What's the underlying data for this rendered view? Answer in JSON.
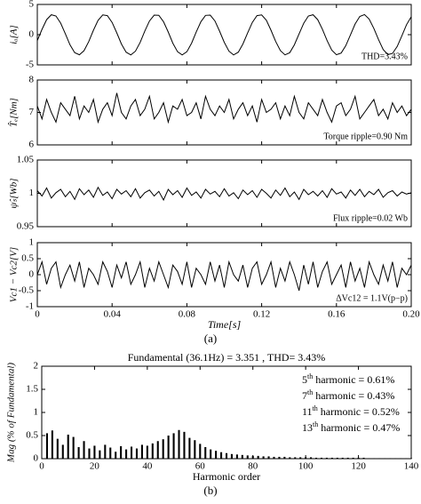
{
  "chart_data": [
    {
      "type": "line",
      "ylabel": "iₐ[A]",
      "annotation": "THD=3.43%",
      "xlim": [
        0,
        0.2
      ],
      "ylim": [
        -5,
        5
      ],
      "yticks": [
        -5,
        0,
        5
      ],
      "color": "#000000",
      "x": [
        0,
        0.0025,
        0.005,
        0.0075,
        0.01,
        0.0125,
        0.015,
        0.0175,
        0.02,
        0.0225,
        0.025,
        0.0275,
        0.03,
        0.0325,
        0.035,
        0.0375,
        0.04,
        0.0425,
        0.045,
        0.0475,
        0.05,
        0.0525,
        0.055,
        0.0575,
        0.06,
        0.0625,
        0.065,
        0.0675,
        0.07,
        0.0725,
        0.075,
        0.0775,
        0.08,
        0.0825,
        0.085,
        0.0875,
        0.09,
        0.0925,
        0.095,
        0.0975,
        0.1,
        0.1025,
        0.105,
        0.1075,
        0.11,
        0.1125,
        0.115,
        0.1175,
        0.12,
        0.1225,
        0.125,
        0.1275,
        0.13,
        0.1325,
        0.135,
        0.1375,
        0.14,
        0.1425,
        0.145,
        0.1475,
        0.15,
        0.1525,
        0.155,
        0.1575,
        0.16,
        0.1625,
        0.165,
        0.1675,
        0.17,
        0.1725,
        0.175,
        0.1775,
        0.18,
        0.1825,
        0.185,
        0.1875,
        0.19,
        0.1925,
        0.195,
        0.1975,
        0.2
      ],
      "values": [
        -0.99,
        0.88,
        2.48,
        3.3,
        3.09,
        1.91,
        0.13,
        -1.68,
        -2.97,
        -3.33,
        -2.65,
        -1.14,
        0.73,
        2.37,
        3.27,
        3.15,
        2.03,
        0.29,
        -1.55,
        -2.9,
        -3.35,
        -2.74,
        -1.28,
        0.58,
        2.26,
        3.24,
        3.2,
        2.15,
        0.44,
        -1.41,
        -2.82,
        -3.35,
        -2.82,
        -1.41,
        0.43,
        2.15,
        3.19,
        3.24,
        2.27,
        0.59,
        -1.27,
        -2.74,
        -3.35,
        -2.9,
        -1.55,
        0.28,
        2.03,
        3.14,
        3.27,
        2.38,
        0.74,
        -1.13,
        -2.65,
        -3.34,
        -2.98,
        -1.69,
        0.12,
        1.9,
        3.09,
        3.3,
        2.49,
        0.89,
        -0.98,
        -2.55,
        -3.32,
        -3.05,
        -1.82,
        -0.03,
        1.77,
        3.02,
        3.33,
        2.59,
        1.04,
        -0.83,
        -2.45,
        -3.29,
        -3.11,
        -1.95,
        -0.18,
        1.64,
        2.95
      ]
    },
    {
      "type": "line",
      "ylabel": "T̂ₑ[Nm]",
      "annotation": "Torque ripple=0.90 Nm",
      "xlim": [
        0,
        0.2
      ],
      "ylim": [
        6,
        8
      ],
      "yticks": [
        6,
        7,
        8
      ],
      "color": "#000000",
      "x": [
        0,
        0.0025,
        0.005,
        0.0075,
        0.01,
        0.0125,
        0.015,
        0.0175,
        0.02,
        0.0225,
        0.025,
        0.0275,
        0.03,
        0.0325,
        0.035,
        0.0375,
        0.04,
        0.0425,
        0.045,
        0.0475,
        0.05,
        0.0525,
        0.055,
        0.0575,
        0.06,
        0.0625,
        0.065,
        0.0675,
        0.07,
        0.0725,
        0.075,
        0.0775,
        0.08,
        0.0825,
        0.085,
        0.0875,
        0.09,
        0.0925,
        0.095,
        0.0975,
        0.1,
        0.1025,
        0.105,
        0.1075,
        0.11,
        0.1125,
        0.115,
        0.1175,
        0.12,
        0.1225,
        0.125,
        0.1275,
        0.13,
        0.1325,
        0.135,
        0.1375,
        0.14,
        0.1425,
        0.145,
        0.1475,
        0.15,
        0.1525,
        0.155,
        0.1575,
        0.16,
        0.1625,
        0.165,
        0.1675,
        0.17,
        0.1725,
        0.175,
        0.1775,
        0.18,
        0.1825,
        0.185,
        0.1875,
        0.19,
        0.1925,
        0.195,
        0.1975,
        0.2
      ],
      "values": [
        7.2,
        6.8,
        7.4,
        7.0,
        6.7,
        7.3,
        7.1,
        6.9,
        7.5,
        6.8,
        7.2,
        7.0,
        7.4,
        6.7,
        7.1,
        7.3,
        6.9,
        7.6,
        7.0,
        6.8,
        7.2,
        7.4,
        6.9,
        7.1,
        7.5,
        6.8,
        7.0,
        7.3,
        6.7,
        7.2,
        7.1,
        7.4,
        6.9,
        7.0,
        7.3,
        6.8,
        7.5,
        7.1,
        6.9,
        7.2,
        7.0,
        7.4,
        6.8,
        7.1,
        7.3,
        6.9,
        7.2,
        6.7,
        7.4,
        7.0,
        7.1,
        7.3,
        6.8,
        7.2,
        6.9,
        7.5,
        7.0,
        6.8,
        7.3,
        7.1,
        6.9,
        7.4,
        7.0,
        6.7,
        7.2,
        7.3,
        6.9,
        7.1,
        7.5,
        6.8,
        7.0,
        7.2,
        7.4,
        6.9,
        7.1,
        6.8,
        7.3,
        7.0,
        7.2,
        6.9,
        7.1
      ]
    },
    {
      "type": "line",
      "ylabel": "ψ̂ₛ[Wb]",
      "annotation": "Flux ripple=0.02 Wb",
      "xlim": [
        0,
        0.2
      ],
      "ylim": [
        0.95,
        1.05
      ],
      "yticks": [
        0.95,
        1,
        1.05
      ],
      "color": "#000000",
      "x": [
        0,
        0.0025,
        0.005,
        0.0075,
        0.01,
        0.0125,
        0.015,
        0.0175,
        0.02,
        0.0225,
        0.025,
        0.0275,
        0.03,
        0.0325,
        0.035,
        0.0375,
        0.04,
        0.0425,
        0.045,
        0.0475,
        0.05,
        0.0525,
        0.055,
        0.0575,
        0.06,
        0.0625,
        0.065,
        0.0675,
        0.07,
        0.0725,
        0.075,
        0.0775,
        0.08,
        0.0825,
        0.085,
        0.0875,
        0.09,
        0.0925,
        0.095,
        0.0975,
        0.1,
        0.1025,
        0.105,
        0.1075,
        0.11,
        0.1125,
        0.115,
        0.1175,
        0.12,
        0.1225,
        0.125,
        0.1275,
        0.13,
        0.1325,
        0.135,
        0.1375,
        0.14,
        0.1425,
        0.145,
        0.1475,
        0.15,
        0.1525,
        0.155,
        0.1575,
        0.16,
        0.1625,
        0.165,
        0.1675,
        0.17,
        0.1725,
        0.175,
        0.1775,
        0.18,
        0.1825,
        0.185,
        0.1875,
        0.19,
        0.1925,
        0.195,
        0.1975,
        0.2
      ],
      "values": [
        1.004,
        0.996,
        1.008,
        0.993,
        1.001,
        1.006,
        0.995,
        1.003,
        0.991,
        1.007,
        0.998,
        1.005,
        0.994,
        1.009,
        0.997,
        1.002,
        0.992,
        1.006,
        0.999,
        1.004,
        0.995,
        1.007,
        0.993,
        1.001,
        1.005,
        0.996,
        1.003,
        0.99,
        1.006,
        0.998,
        1.004,
        0.994,
        1.008,
        0.997,
        1.002,
        0.993,
        1.006,
        0.999,
        1.003,
        0.995,
        1.007,
        0.996,
        1.001,
        0.992,
        1.005,
        0.998,
        1.004,
        0.994,
        1.006,
        1.0,
        0.993,
        1.005,
        0.997,
        1.008,
        0.995,
        1.002,
        0.991,
        1.006,
        0.998,
        1.003,
        0.996,
        1.004,
        0.994,
        1.007,
        0.999,
        1.002,
        0.993,
        1.005,
        0.997,
        1.006,
        0.995,
        1.003,
        0.998,
        1.006,
        0.994,
        1.001,
        1.004,
        0.996,
        1.002,
        0.999,
        1.001
      ]
    },
    {
      "type": "line",
      "ylabel": "Vc1 − Vc2[V]",
      "annotation": "ΔVc12 = 1.1V(p−p)",
      "xlabel": "Time[s]",
      "xlim": [
        0,
        0.2
      ],
      "ylim": [
        -1,
        1
      ],
      "yticks": [
        -1,
        -0.5,
        0,
        0.5,
        1
      ],
      "xticks": [
        0,
        0.04,
        0.08,
        0.12,
        0.16,
        {
          "value": 0.2,
          "label": "0.20"
        }
      ],
      "color": "#000000",
      "x": [
        0,
        0.0025,
        0.005,
        0.0075,
        0.01,
        0.0125,
        0.015,
        0.0175,
        0.02,
        0.0225,
        0.025,
        0.0275,
        0.03,
        0.0325,
        0.035,
        0.0375,
        0.04,
        0.0425,
        0.045,
        0.0475,
        0.05,
        0.0525,
        0.055,
        0.0575,
        0.06,
        0.0625,
        0.065,
        0.0675,
        0.07,
        0.0725,
        0.075,
        0.0775,
        0.08,
        0.0825,
        0.085,
        0.0875,
        0.09,
        0.0925,
        0.095,
        0.0975,
        0.1,
        0.1025,
        0.105,
        0.1075,
        0.11,
        0.1125,
        0.115,
        0.1175,
        0.12,
        0.1225,
        0.125,
        0.1275,
        0.13,
        0.1325,
        0.135,
        0.1375,
        0.14,
        0.1425,
        0.145,
        0.1475,
        0.15,
        0.1525,
        0.155,
        0.1575,
        0.16,
        0.1625,
        0.165,
        0.1675,
        0.17,
        0.1725,
        0.175,
        0.1775,
        0.18,
        0.1825,
        0.185,
        0.1875,
        0.19,
        0.1925,
        0.195,
        0.1975,
        0.2
      ],
      "values": [
        0,
        0.4,
        -0.3,
        0.2,
        0.4,
        -0.4,
        0,
        0.3,
        -0.2,
        0.4,
        -0.4,
        0.2,
        0,
        -0.3,
        0.4,
        0.1,
        -0.4,
        0.3,
        -0.1,
        0.4,
        -0.3,
        0,
        0.4,
        -0.4,
        0.2,
        -0.2,
        0.4,
        0,
        -0.4,
        0.3,
        0.1,
        -0.3,
        0.4,
        -0.4,
        0.2,
        0,
        -0.3,
        0.4,
        -0.2,
        0.3,
        -0.4,
        0.4,
        0,
        -0.2,
        0.3,
        -0.4,
        0.2,
        0.4,
        -0.3,
        0,
        0.4,
        -0.4,
        0.2,
        -0.2,
        0.4,
        0,
        -0.5,
        0.3,
        -0.3,
        0.4,
        -0.4,
        0.1,
        0.4,
        -0.3,
        0,
        0.3,
        -0.4,
        0.4,
        -0.2,
        0.2,
        -0.4,
        0.4,
        0,
        -0.3,
        0.3,
        -0.2,
        0.4,
        -0.4,
        0.2,
        0,
        0.3
      ]
    },
    {
      "type": "bar",
      "title": "Fundamental (36.1Hz) = 3.351 , THD= 3.43%",
      "xlabel": "Harmonic order",
      "ylabel": "Mag (% of Fundamental)",
      "xlim": [
        0,
        140
      ],
      "ylim": [
        0,
        2
      ],
      "xticks": [
        0,
        20,
        40,
        60,
        80,
        100,
        120,
        140
      ],
      "yticks": [
        0,
        0.5,
        1,
        1.5,
        2
      ],
      "color": "#000000",
      "x": [
        2,
        4,
        6,
        8,
        10,
        12,
        14,
        16,
        18,
        20,
        22,
        24,
        26,
        28,
        30,
        32,
        34,
        36,
        38,
        40,
        42,
        44,
        46,
        48,
        50,
        52,
        54,
        56,
        58,
        60,
        62,
        64,
        66,
        68,
        70,
        72,
        74,
        76,
        78,
        80,
        82,
        84,
        86,
        88,
        90,
        92,
        94,
        96,
        98,
        100,
        102,
        104,
        106,
        108,
        110,
        112,
        114,
        116,
        118,
        120,
        122,
        124,
        126,
        128,
        130,
        132,
        134,
        136,
        138,
        140
      ],
      "values": [
        0.55,
        0.61,
        0.43,
        0.3,
        0.52,
        0.47,
        0.25,
        0.38,
        0.22,
        0.28,
        0.18,
        0.3,
        0.24,
        0.15,
        0.27,
        0.2,
        0.26,
        0.22,
        0.3,
        0.28,
        0.33,
        0.38,
        0.42,
        0.5,
        0.55,
        0.62,
        0.58,
        0.45,
        0.4,
        0.32,
        0.25,
        0.2,
        0.17,
        0.14,
        0.12,
        0.1,
        0.09,
        0.08,
        0.07,
        0.06,
        0.06,
        0.05,
        0.05,
        0.04,
        0.04,
        0.04,
        0.03,
        0.03,
        0.03,
        0.03,
        0.03,
        0.02,
        0.02,
        0.02,
        0.02,
        0.02,
        0.02,
        0.02,
        0.02,
        0.02,
        0.02,
        0.01,
        0.01,
        0.01,
        0.01,
        0.01,
        0.01,
        0.01,
        0.01,
        0.01
      ],
      "harmonics": [
        {
          "order": "5",
          "suffix": "th",
          "text": " harmonic = 0.61%"
        },
        {
          "order": "7",
          "suffix": "th",
          "text": " harmonic = 0.43%"
        },
        {
          "order": "11",
          "suffix": "th",
          "text": " harmonic = 0.52%"
        },
        {
          "order": "13",
          "suffix": "th",
          "text": " harmonic = 0.47%"
        }
      ]
    }
  ],
  "caption_a": "(a)",
  "caption_b": "(b)"
}
